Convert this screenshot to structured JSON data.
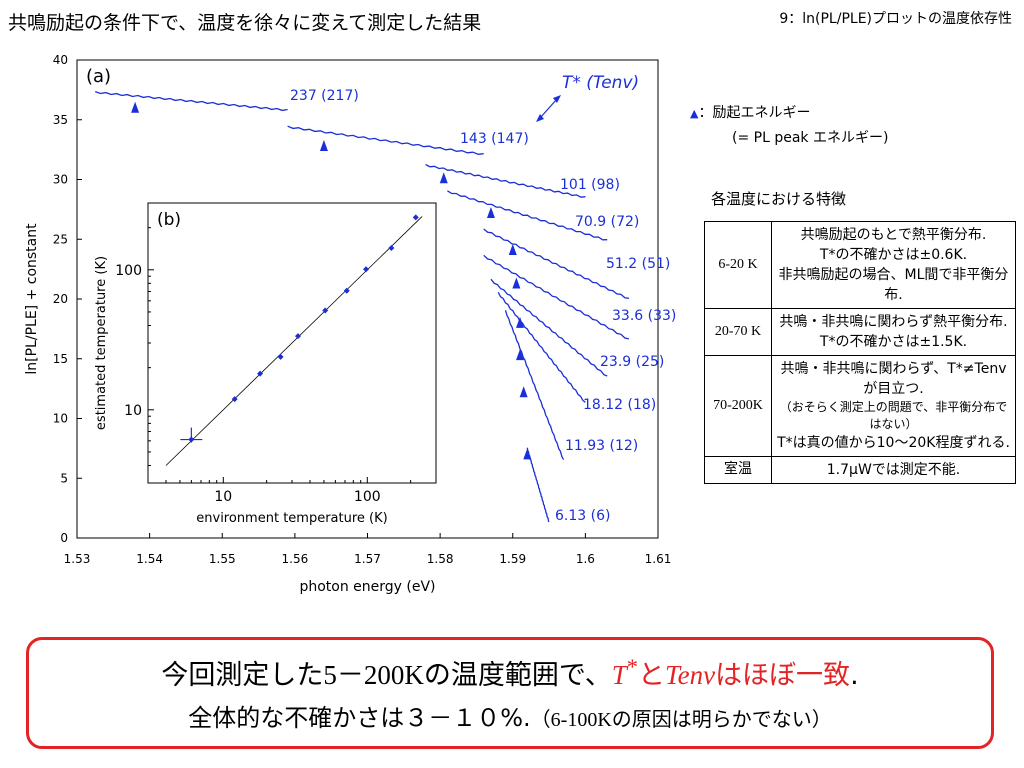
{
  "title": "共鳴励起の条件下で、温度を徐々に変えて測定した結果",
  "slide_label": "9：ln(PL/PLE)プロットの温度依存性",
  "legend": {
    "marker_label": "：励起エネルギー",
    "marker_note": "(= PL peak エネルギー)"
  },
  "features": {
    "title": "各温度における特徴",
    "rows": [
      {
        "cond": "6-20 K",
        "lines": [
          "共鳴励起のもとで熱平衡分布.",
          "T*の不確かさは±0.6K.",
          "非共鳴励起の場合、ML間で非平衡分布."
        ]
      },
      {
        "cond": "20-70 K",
        "lines": [
          "共鳴・非共鳴に関わらず熱平衡分布.",
          "T*の不確かさは±1.5K."
        ]
      },
      {
        "cond": "70-200K",
        "lines": [
          "共鳴・非共鳴に関わらず、T*≠Tenvが目立つ.",
          "（おそらく測定上の問題で、非平衡分布ではない）",
          "T*は真の値から10〜20K程度ずれる."
        ]
      },
      {
        "cond": "室温",
        "lines": [
          "1.7μWでは測定不能."
        ]
      }
    ]
  },
  "conclusion": {
    "line1_a": "今回測定した",
    "line1_b": "5－200K",
    "line1_c": "の温度範囲で、",
    "line1_t": "T",
    "line1_star": "*",
    "line1_to": "と",
    "line1_tenv": "Tenv",
    "line1_d": "はほぼ一致",
    "line1_e": ".",
    "line2_a": "全体的な不確かさは３－１０%.",
    "line2_b": "（",
    "line2_c": "6-100K",
    "line2_d": "の原因は明らかでない）"
  },
  "chart_data": [
    {
      "type": "line",
      "panel_label": "(a)",
      "xlabel": "photon energy (eV)",
      "ylabel": "ln[PL/PLE] + constant",
      "xlim": [
        1.53,
        1.61
      ],
      "ylim": [
        0,
        40
      ],
      "xticks": [
        "1.53",
        "1.54",
        "1.55",
        "1.56",
        "1.57",
        "1.58",
        "1.59",
        "1.6",
        "1.61"
      ],
      "yticks": [
        "0",
        "5",
        "10",
        "15",
        "20",
        "25",
        "30",
        "35",
        "40"
      ],
      "curve_header": "T* (Tenv)",
      "color": "#1a2fd8",
      "series": [
        {
          "name": "237 (217)",
          "x": [
            1.5325,
            1.559
          ],
          "y": [
            37.3,
            35.8
          ],
          "marker": {
            "x": 1.538,
            "y": 36.0
          }
        },
        {
          "name": "143 (147)",
          "x": [
            1.559,
            1.586
          ],
          "y": [
            34.4,
            32.1
          ],
          "marker": {
            "x": 1.564,
            "y": 32.8
          }
        },
        {
          "name": "101 (98)",
          "x": [
            1.578,
            1.6
          ],
          "y": [
            31.2,
            28.5
          ],
          "marker": {
            "x": 1.5805,
            "y": 30.1
          }
        },
        {
          "name": "70.9 (72)",
          "x": [
            1.581,
            1.603
          ],
          "y": [
            29.0,
            24.9
          ],
          "marker": {
            "x": 1.587,
            "y": 27.2
          }
        },
        {
          "name": "51.2 (51)",
          "x": [
            1.586,
            1.606
          ],
          "y": [
            25.8,
            20.0
          ],
          "marker": {
            "x": 1.59,
            "y": 24.1
          }
        },
        {
          "name": "33.6 (33)",
          "x": [
            1.586,
            1.606
          ],
          "y": [
            23.6,
            16.6
          ],
          "marker": {
            "x": 1.5905,
            "y": 21.3
          }
        },
        {
          "name": "23.9 (25)",
          "x": [
            1.587,
            1.603
          ],
          "y": [
            21.6,
            13.5
          ],
          "marker": {
            "x": 1.591,
            "y": 18.0
          }
        },
        {
          "name": "18.12 (18)",
          "x": [
            1.588,
            1.6
          ],
          "y": [
            20.5,
            11.3
          ],
          "marker": {
            "x": 1.591,
            "y": 15.3
          }
        },
        {
          "name": "11.93 (12)",
          "x": [
            1.589,
            1.597
          ],
          "y": [
            19.0,
            6.5
          ],
          "marker": {
            "x": 1.5915,
            "y": 12.2
          }
        },
        {
          "name": "6.13 (6)",
          "x": [
            1.592,
            1.595
          ],
          "y": [
            7.5,
            1.3
          ],
          "marker": {
            "x": 1.592,
            "y": 7.0
          }
        }
      ]
    },
    {
      "type": "scatter",
      "panel_label": "(b)",
      "xlabel": "environment temperature (K)",
      "ylabel": "estimated temperature (K)",
      "xscale": "log",
      "yscale": "log",
      "xlim": [
        3,
        300
      ],
      "ylim": [
        3,
        300
      ],
      "xticks": [
        "10",
        "100"
      ],
      "yticks": [
        "10",
        "100"
      ],
      "points": [
        {
          "x": 6,
          "y": 6.13
        },
        {
          "x": 12,
          "y": 11.93
        },
        {
          "x": 18,
          "y": 18.12
        },
        {
          "x": 25,
          "y": 23.9
        },
        {
          "x": 33,
          "y": 33.6
        },
        {
          "x": 51,
          "y": 51.2
        },
        {
          "x": 72,
          "y": 70.9
        },
        {
          "x": 98,
          "y": 101
        },
        {
          "x": 147,
          "y": 143
        },
        {
          "x": 217,
          "y": 237
        }
      ],
      "reference_line": [
        [
          4,
          4
        ],
        [
          240,
          240
        ]
      ]
    }
  ]
}
